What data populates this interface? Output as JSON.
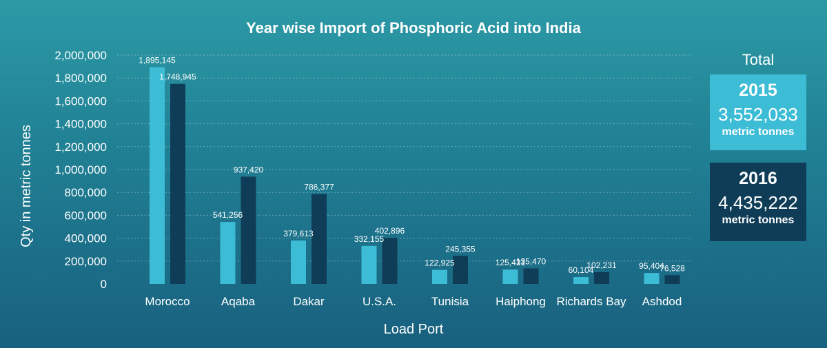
{
  "chart_data": {
    "type": "bar",
    "title": "Year wise Import of Phosphoric Acid into India",
    "xlabel": "Load Port",
    "ylabel": "Qty in metric tonnes",
    "ylim": [
      0,
      2000000
    ],
    "yticks": [
      0,
      200000,
      400000,
      600000,
      800000,
      1000000,
      1200000,
      1400000,
      1600000,
      1800000,
      2000000
    ],
    "ytick_labels": [
      "0",
      "200,000",
      "400,000",
      "600,000",
      "800,000",
      "1,000,000",
      "1,200,000",
      "1,400,000",
      "1,600,000",
      "1,800,000",
      "2,000,000"
    ],
    "grid": true,
    "categories": [
      "Morocco",
      "Aqaba",
      "Dakar",
      "U.S.A.",
      "Tunisia",
      "Haiphong",
      "Richards Bay",
      "Ashdod"
    ],
    "series": [
      {
        "values": [
          1895145,
          541256,
          379613,
          332155,
          122925,
          125431,
          60104,
          95404
        ],
        "labels": [
          "1,895,145",
          "541,256",
          "379,613",
          "332,155",
          "122,925",
          "125,431",
          "60,104",
          "95,404"
        ],
        "color": "#3dbcd6"
      },
      {
        "values": [
          1748945,
          937420,
          786377,
          402896,
          245355,
          135470,
          102231,
          76528
        ],
        "labels": [
          "1,748,945",
          "937,420",
          "786,377",
          "402,896",
          "245,355",
          "135,470",
          "102,231",
          "76,528"
        ],
        "color": "#0f3d58"
      }
    ]
  },
  "totals": {
    "heading": "Total",
    "items": [
      {
        "year": "2015",
        "value": "3,552,033",
        "unit": "metric tonnes"
      },
      {
        "year": "2016",
        "value": "4,435,222",
        "unit": "metric tonnes"
      }
    ]
  }
}
